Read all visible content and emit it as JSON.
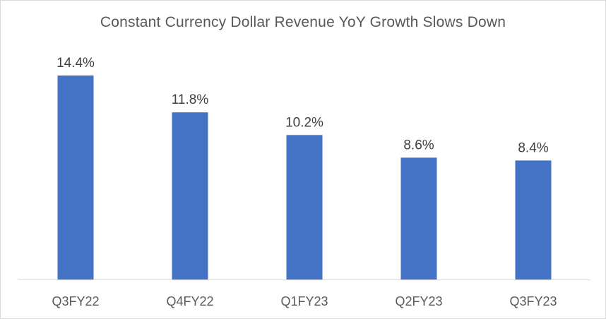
{
  "chart_data": {
    "type": "bar",
    "title": "Constant Currency Dollar Revenue YoY Growth Slows Down",
    "categories": [
      "Q3FY22",
      "Q4FY22",
      "Q1FY23",
      "Q2FY23",
      "Q3FY23"
    ],
    "values": [
      14.4,
      11.8,
      10.2,
      8.6,
      8.4
    ],
    "data_labels": [
      "14.4%",
      "11.8%",
      "10.2%",
      "8.6%",
      "8.4%"
    ],
    "value_unit": "%",
    "ylim": [
      0,
      15
    ],
    "grid": false,
    "legend": "none",
    "bar_color": "#4472C4",
    "axis_color": "#d9d9d9"
  }
}
